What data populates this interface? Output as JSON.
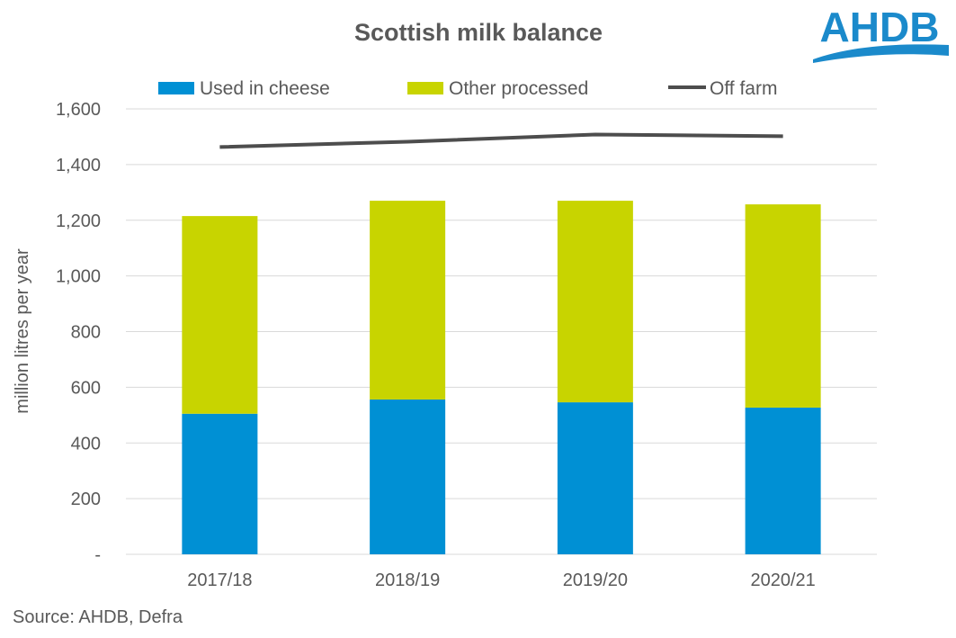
{
  "chart_data": {
    "type": "bar",
    "stacked": true,
    "title": "Scottish milk balance",
    "ylabel": "million litres per year",
    "xlabel": "",
    "ylim": [
      0,
      1600
    ],
    "yticks": [
      0,
      200,
      400,
      600,
      800,
      1000,
      1200,
      1400,
      1600
    ],
    "ytick_labels": [
      "-",
      "200",
      "400",
      "600",
      "800",
      "1,000",
      "1,200",
      "1,400",
      "1,600"
    ],
    "categories": [
      "2017/18",
      "2018/19",
      "2019/20",
      "2020/21"
    ],
    "series": [
      {
        "name": "Used in cheese",
        "type": "bar",
        "color": "#0090D4",
        "values": [
          505,
          556,
          546,
          527
        ]
      },
      {
        "name": "Other processed",
        "type": "bar",
        "color": "#C8D400",
        "values": [
          710,
          714,
          724,
          730
        ]
      },
      {
        "name": "Off farm",
        "type": "line",
        "color": "#4D4D4D",
        "values": [
          1463,
          1482,
          1508,
          1502
        ]
      }
    ],
    "grid": true,
    "legend": "top"
  },
  "source": "Source: AHDB, Defra",
  "logo": {
    "text": "AHDB",
    "color": "#1B8ACB"
  }
}
